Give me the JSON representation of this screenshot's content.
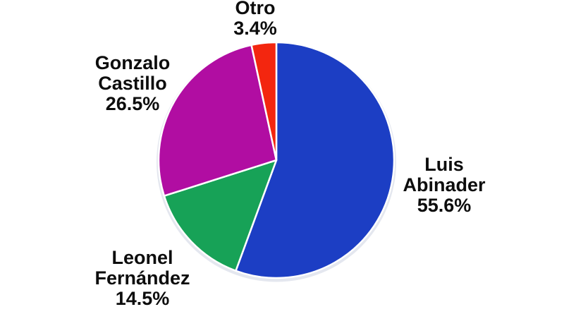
{
  "page": {
    "background_color": "#ffffff"
  },
  "chart_data": {
    "type": "pie",
    "title": "",
    "categories": [
      "Luis Abinader",
      "Leonel Fernández",
      "Gonzalo Castillo",
      "Otro"
    ],
    "values": [
      55.6,
      14.5,
      26.5,
      3.4
    ],
    "colors": [
      "#1c3ec4",
      "#17a257",
      "#b10da2",
      "#f3260f"
    ],
    "start_angle_deg": 0,
    "direction": "clockwise",
    "slice_border_color": "#ffffff",
    "outer_ring_color": "#e4e7ef",
    "legend_position": "none",
    "labels": [
      {
        "name": "otro",
        "text": "Otro\n3.4%"
      },
      {
        "name": "gonzalo-castillo",
        "text": "Gonzalo\nCastillo\n26.5%"
      },
      {
        "name": "luis-abinader",
        "text": "Luis\nAbinader\n55.6%"
      },
      {
        "name": "leonel-fernandez",
        "text": "Leonel\nFernández\n14.5%"
      }
    ]
  }
}
